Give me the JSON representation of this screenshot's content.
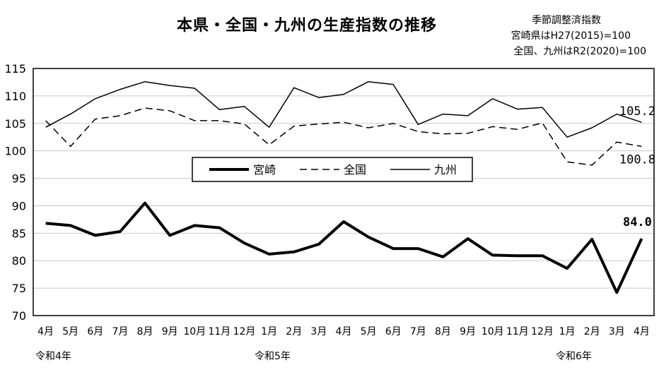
{
  "title": "本県・全国・九州の生産指数の推移",
  "notes": [
    "季節調整済指数",
    "宮崎県はH27(2015)=100",
    "全国、九州はR2(2020)=100"
  ],
  "eras": [
    "令和4年",
    "令和5年",
    "令和6年"
  ],
  "chart_data": {
    "type": "line",
    "categories": [
      "4月",
      "5月",
      "6月",
      "7月",
      "8月",
      "9月",
      "10月",
      "11月",
      "12月",
      "1月",
      "2月",
      "3月",
      "4月",
      "5月",
      "6月",
      "7月",
      "8月",
      "9月",
      "10月",
      "11月",
      "12月",
      "1月",
      "2月",
      "3月",
      "4月"
    ],
    "ylim": [
      70,
      115
    ],
    "yticks": [
      70,
      75,
      80,
      85,
      90,
      95,
      100,
      105,
      110,
      115
    ],
    "grid": true,
    "legend_position": "center",
    "series": [
      {
        "name": "宮崎",
        "style": "thick-solid",
        "values": [
          86.8,
          86.4,
          84.6,
          85.3,
          90.5,
          84.6,
          86.4,
          86.0,
          83.2,
          81.2,
          81.6,
          83.0,
          87.1,
          84.3,
          82.2,
          82.2,
          80.7,
          84.0,
          81.0,
          80.9,
          80.9,
          78.6,
          83.9,
          74.2,
          84.0
        ]
      },
      {
        "name": "全国",
        "style": "dashed",
        "values": [
          105.5,
          100.8,
          105.8,
          106.4,
          107.8,
          107.3,
          105.5,
          105.5,
          104.9,
          101.1,
          104.5,
          104.9,
          105.2,
          104.2,
          105.0,
          103.5,
          103.1,
          103.2,
          104.4,
          103.9,
          105.1,
          98.0,
          97.4,
          101.6,
          100.8
        ]
      },
      {
        "name": "九州",
        "style": "thin-solid",
        "values": [
          104.3,
          106.7,
          109.5,
          111.2,
          112.6,
          111.9,
          111.4,
          107.5,
          108.1,
          104.3,
          111.5,
          109.7,
          110.3,
          112.6,
          112.1,
          104.8,
          106.7,
          106.4,
          109.5,
          107.6,
          107.9,
          102.5,
          104.2,
          106.7,
          105.2
        ]
      }
    ],
    "data_labels": [
      {
        "series": "九州",
        "text": "105.2"
      },
      {
        "series": "全国",
        "text": "100.8"
      },
      {
        "series": "宮崎",
        "text": "84.0"
      }
    ]
  }
}
